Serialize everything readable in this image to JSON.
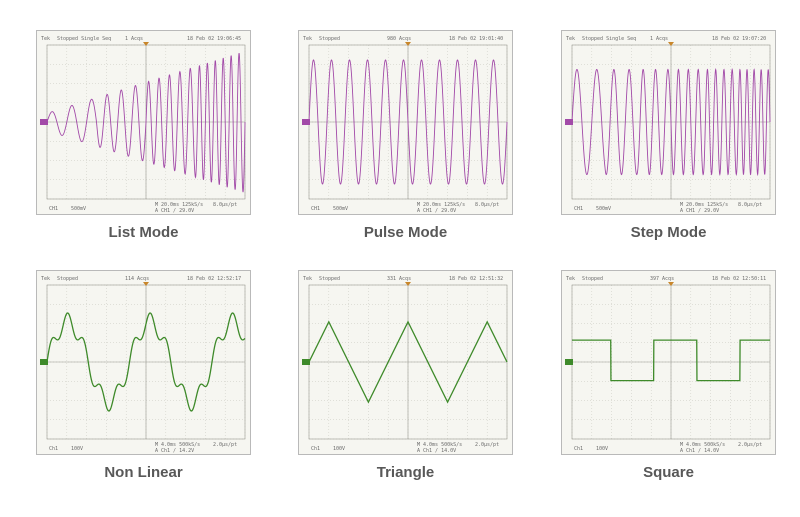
{
  "colors": {
    "purple": "#a24aa8",
    "green": "#3e8a2a"
  },
  "panels": [
    {
      "caption": "List Mode",
      "header": {
        "left": "Tek",
        "status": "Stopped Single Seq",
        "acq": "1 Acqs",
        "time": "18 Feb 02 19:06:45"
      },
      "footer": {
        "ch": "CH1",
        "scale": "500mV",
        "info": "M 20.0ms 125kS/s",
        "trig": "A CH1 / 29.0V",
        "res": "8.0µs/pt"
      }
    },
    {
      "caption": "Pulse Mode",
      "header": {
        "left": "Tek",
        "status": "Stopped",
        "acq": "980 Acqs",
        "time": "18 Feb 02 19:01:40"
      },
      "footer": {
        "ch": "CH1",
        "scale": "500mV",
        "info": "M 20.0ms 125kS/s",
        "trig": "A CH1 / 29.0V",
        "res": "8.0µs/pt"
      }
    },
    {
      "caption": "Step Mode",
      "header": {
        "left": "Tek",
        "status": "Stopped Single Seq",
        "acq": "1 Acqs",
        "time": "18 Feb 02 19:07:20"
      },
      "footer": {
        "ch": "CH1",
        "scale": "500mV",
        "info": "M 20.0ms 125kS/s",
        "trig": "A CH1 / 29.0V",
        "res": "8.0µs/pt"
      }
    },
    {
      "caption": "Non Linear",
      "header": {
        "left": "Tek",
        "status": "Stopped",
        "acq": "114 Acqs",
        "time": "18 Feb 02 12:52:17"
      },
      "footer": {
        "ch": "Ch1",
        "scale": "100V",
        "info": "M 4.0ms 500kS/s",
        "trig": "A Ch1 / 14.2V",
        "res": "2.0µs/pt"
      }
    },
    {
      "caption": "Triangle",
      "header": {
        "left": "Tek",
        "status": "Stopped",
        "acq": "331 Acqs",
        "time": "18 Feb 02 12:51:32"
      },
      "footer": {
        "ch": "Ch1",
        "scale": "100V",
        "info": "M 4.0ms 500kS/s",
        "trig": "A Ch1 / 14.0V",
        "res": "2.0µs/pt"
      }
    },
    {
      "caption": "Square",
      "header": {
        "left": "Tek",
        "status": "Stopped",
        "acq": "397 Acqs",
        "time": "18 Feb 02 12:50:11"
      },
      "footer": {
        "ch": "Ch1",
        "scale": "100V",
        "info": "M 4.0ms 500kS/s",
        "trig": "A Ch1 / 14.0V",
        "res": "2.0µs/pt"
      }
    }
  ],
  "chart_data": [
    {
      "type": "line",
      "title": "List Mode",
      "color": "#a24aa8",
      "shape": "sine",
      "frequency_steps": [
        1.0,
        1.4,
        1.9,
        2.5
      ],
      "amplitude": 1.0,
      "grid": true,
      "xdiv": 10,
      "ydiv": 8
    },
    {
      "type": "line",
      "title": "Pulse Mode",
      "color": "#a24aa8",
      "shape": "sine",
      "frequency": 1.0,
      "amplitude": 0.85,
      "grid": true,
      "xdiv": 10,
      "ydiv": 8
    },
    {
      "type": "line",
      "title": "Step Mode",
      "color": "#a24aa8",
      "shape": "sine",
      "frequency_steps": [
        1.0,
        1.3,
        1.6,
        2.0,
        2.4,
        2.8
      ],
      "amplitude": 0.72,
      "grid": true,
      "xdiv": 10,
      "ydiv": 8
    },
    {
      "type": "line",
      "title": "Non Linear",
      "color": "#3e8a2a",
      "shape": "sine_with_harmonic",
      "cycles": 2.4,
      "amplitude": 0.55,
      "grid": true,
      "xdiv": 10,
      "ydiv": 8
    },
    {
      "type": "line",
      "title": "Triangle",
      "color": "#3e8a2a",
      "shape": "triangle",
      "cycles": 2.5,
      "amplitude": 0.55,
      "grid": true,
      "xdiv": 10,
      "ydiv": 8
    },
    {
      "type": "line",
      "title": "Square",
      "color": "#3e8a2a",
      "shape": "square",
      "cycles": 2.3,
      "amplitude": 0.3,
      "grid": true,
      "xdiv": 10,
      "ydiv": 8
    }
  ]
}
